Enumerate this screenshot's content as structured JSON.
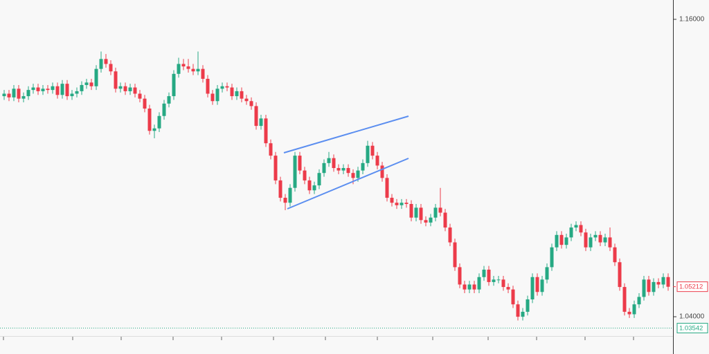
{
  "chart_data": {
    "type": "candlestick",
    "up_color": "#26a983",
    "down_color": "#ec3b4a",
    "ylim": [
      1.0311,
      1.1678
    ],
    "yticks": [
      {
        "value": 1.16,
        "label": "1.16000"
      },
      {
        "value": 1.04,
        "label": "1.04000"
      }
    ],
    "open": [
      1.129,
      1.13,
      1.1285,
      1.132,
      1.128,
      1.129,
      1.1315,
      1.1325,
      1.131,
      1.132,
      1.1315,
      1.133,
      1.1295,
      1.134,
      1.129,
      1.13,
      1.131,
      1.1335,
      1.1345,
      1.133,
      1.14,
      1.144,
      1.142,
      1.139,
      1.132,
      1.133,
      1.131,
      1.1325,
      1.13,
      1.128,
      1.124,
      1.115,
      1.116,
      1.121,
      1.126,
      1.129,
      1.138,
      1.142,
      1.141,
      1.14,
      1.139,
      1.14,
      1.136,
      1.13,
      1.127,
      1.132,
      1.133,
      1.1325,
      1.129,
      1.131,
      1.128,
      1.127,
      1.125,
      1.117,
      1.12,
      1.11,
      1.105,
      1.095,
      1.088,
      1.086,
      1.092,
      1.105,
      1.099,
      1.095,
      1.091,
      1.093,
      1.098,
      1.102,
      1.104,
      1.1,
      1.099,
      1.1,
      1.098,
      1.096,
      1.099,
      1.102,
      1.109,
      1.105,
      1.101,
      1.096,
      1.088,
      1.086,
      1.085,
      1.086,
      1.0855,
      1.08,
      1.084,
      1.079,
      1.078,
      1.08,
      1.084,
      1.082,
      1.076,
      1.07,
      1.06,
      1.053,
      1.051,
      1.053,
      1.051,
      1.056,
      1.059,
      1.054,
      1.055,
      1.055,
      1.052,
      1.051,
      1.045,
      1.04,
      1.042,
      1.047,
      1.056,
      1.05,
      1.055,
      1.06,
      1.068,
      1.073,
      1.069,
      1.072,
      1.076,
      1.077,
      1.074,
      1.068,
      1.072,
      1.073,
      1.07,
      1.072,
      1.068,
      1.062,
      1.052,
      1.042,
      1.041,
      1.045,
      1.048,
      1.055,
      1.05,
      1.054,
      1.053,
      1.056
    ],
    "close": [
      1.13,
      1.1285,
      1.132,
      1.128,
      1.129,
      1.1315,
      1.1325,
      1.131,
      1.132,
      1.1315,
      1.133,
      1.1295,
      1.134,
      1.129,
      1.13,
      1.131,
      1.1335,
      1.1345,
      1.133,
      1.14,
      1.144,
      1.142,
      1.139,
      1.132,
      1.133,
      1.131,
      1.1325,
      1.13,
      1.128,
      1.124,
      1.115,
      1.116,
      1.121,
      1.126,
      1.129,
      1.138,
      1.142,
      1.141,
      1.14,
      1.139,
      1.14,
      1.136,
      1.13,
      1.127,
      1.132,
      1.133,
      1.1325,
      1.129,
      1.131,
      1.128,
      1.127,
      1.125,
      1.117,
      1.12,
      1.11,
      1.105,
      1.095,
      1.088,
      1.086,
      1.092,
      1.105,
      1.099,
      1.095,
      1.091,
      1.093,
      1.098,
      1.102,
      1.104,
      1.1,
      1.099,
      1.1,
      1.098,
      1.096,
      1.099,
      1.102,
      1.109,
      1.105,
      1.101,
      1.096,
      1.088,
      1.086,
      1.085,
      1.086,
      1.0855,
      1.08,
      1.084,
      1.079,
      1.078,
      1.08,
      1.084,
      1.082,
      1.076,
      1.07,
      1.06,
      1.053,
      1.051,
      1.053,
      1.051,
      1.056,
      1.059,
      1.054,
      1.055,
      1.055,
      1.052,
      1.051,
      1.045,
      1.04,
      1.042,
      1.047,
      1.056,
      1.05,
      1.055,
      1.06,
      1.068,
      1.073,
      1.069,
      1.072,
      1.076,
      1.077,
      1.074,
      1.068,
      1.072,
      1.073,
      1.07,
      1.072,
      1.068,
      1.062,
      1.052,
      1.042,
      1.041,
      1.045,
      1.048,
      1.055,
      1.05,
      1.054,
      1.053,
      1.056,
      1.0521
    ],
    "high": [
      1.1315,
      1.1315,
      1.1335,
      1.1335,
      1.1305,
      1.133,
      1.134,
      1.134,
      1.1335,
      1.1335,
      1.1345,
      1.1345,
      1.1355,
      1.1355,
      1.1315,
      1.1325,
      1.135,
      1.136,
      1.136,
      1.1415,
      1.147,
      1.146,
      1.1435,
      1.1405,
      1.1345,
      1.1345,
      1.134,
      1.134,
      1.1315,
      1.1295,
      1.1255,
      1.1175,
      1.1225,
      1.1275,
      1.1305,
      1.1395,
      1.1445,
      1.144,
      1.144,
      1.142,
      1.147,
      1.1415,
      1.1375,
      1.1315,
      1.1335,
      1.1345,
      1.1345,
      1.134,
      1.1325,
      1.1325,
      1.1295,
      1.1285,
      1.1265,
      1.1215,
      1.1215,
      1.1115,
      1.1065,
      1.0965,
      1.0895,
      1.0935,
      1.1065,
      1.1065,
      1.1005,
      1.0965,
      1.0945,
      1.0995,
      1.1035,
      1.1065,
      1.1055,
      1.1015,
      1.1015,
      1.1015,
      1.0995,
      1.1005,
      1.1035,
      1.111,
      1.1105,
      1.1065,
      1.1025,
      1.0975,
      1.0895,
      1.0875,
      1.0875,
      1.0875,
      1.087,
      1.0855,
      1.0855,
      1.0805,
      1.0815,
      1.0855,
      1.092,
      1.0835,
      1.0775,
      1.0715,
      1.0615,
      1.0545,
      1.0545,
      1.0545,
      1.0575,
      1.0605,
      1.0605,
      1.0565,
      1.0565,
      1.0565,
      1.0535,
      1.0525,
      1.0465,
      1.0435,
      1.0485,
      1.0575,
      1.0575,
      1.0565,
      1.0615,
      1.0695,
      1.0745,
      1.0745,
      1.0735,
      1.0775,
      1.0785,
      1.0785,
      1.0755,
      1.0735,
      1.0745,
      1.0745,
      1.0735,
      1.076,
      1.0695,
      1.0635,
      1.0535,
      1.0435,
      1.0465,
      1.0495,
      1.0565,
      1.0565,
      1.0555,
      1.0555,
      1.0575,
      1.0575
    ],
    "low": [
      1.1275,
      1.127,
      1.127,
      1.1265,
      1.1265,
      1.1275,
      1.13,
      1.1295,
      1.1295,
      1.13,
      1.13,
      1.128,
      1.128,
      1.1275,
      1.1275,
      1.1285,
      1.1295,
      1.132,
      1.1315,
      1.1315,
      1.1385,
      1.1405,
      1.1375,
      1.1305,
      1.1305,
      1.1295,
      1.1295,
      1.1285,
      1.1265,
      1.1225,
      1.1135,
      1.112,
      1.1145,
      1.1195,
      1.1245,
      1.1275,
      1.1365,
      1.1395,
      1.1385,
      1.1375,
      1.1375,
      1.1345,
      1.1285,
      1.1255,
      1.1255,
      1.1305,
      1.131,
      1.1275,
      1.1275,
      1.1265,
      1.1255,
      1.1235,
      1.1155,
      1.1155,
      1.1085,
      1.1035,
      1.0935,
      1.0865,
      1.083,
      1.0845,
      1.0905,
      1.0975,
      1.0935,
      1.0895,
      1.0895,
      1.0915,
      1.0965,
      1.1005,
      1.0985,
      1.0975,
      1.0975,
      1.0965,
      1.0935,
      1.0945,
      1.0975,
      1.1005,
      1.1035,
      1.0995,
      1.0945,
      1.0865,
      1.0845,
      1.0835,
      1.0835,
      1.084,
      1.0785,
      1.0785,
      1.0775,
      1.0765,
      1.0765,
      1.0785,
      1.0805,
      1.0745,
      1.0685,
      1.0585,
      1.0515,
      1.0495,
      1.0495,
      1.0495,
      1.0495,
      1.0545,
      1.0525,
      1.0525,
      1.0535,
      1.0505,
      1.0495,
      1.0435,
      1.0385,
      1.0385,
      1.0405,
      1.0455,
      1.0485,
      1.0485,
      1.0535,
      1.0585,
      1.0665,
      1.0675,
      1.0675,
      1.0705,
      1.0745,
      1.0725,
      1.0665,
      1.0665,
      1.0705,
      1.0685,
      1.0685,
      1.0665,
      1.0605,
      1.0505,
      1.0405,
      1.0395,
      1.0395,
      1.0435,
      1.0465,
      1.0485,
      1.0485,
      1.0515,
      1.0515,
      1.0505
    ],
    "price_labels": [
      {
        "value": 1.05212,
        "label": "1.05212",
        "color": "#ec3b4a"
      },
      {
        "value": 1.03542,
        "label": "1.03542",
        "color": "#26a983"
      }
    ]
  }
}
